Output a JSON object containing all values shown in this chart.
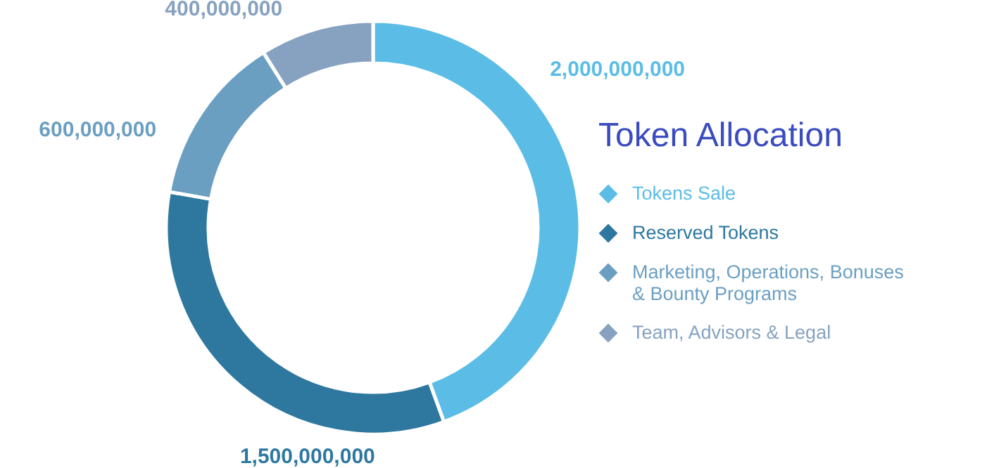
{
  "chart_data": {
    "type": "donut",
    "legend_title": "Token Allocation",
    "categories": [
      "Tokens Sale",
      "Reserved Tokens",
      "Marketing, Operations, Bonuses\n& Bounty Programs",
      "Team, Advisors & Legal"
    ],
    "values": [
      2000000000,
      1500000000,
      600000000,
      400000000
    ],
    "colors": [
      "#5bbde6",
      "#2e78a0",
      "#6b9fc2",
      "#87a2c0"
    ],
    "value_labels": [
      "2,000,000,000",
      "1,500,000,000",
      "600,000,000",
      "400,000,000"
    ],
    "legend": "right"
  }
}
